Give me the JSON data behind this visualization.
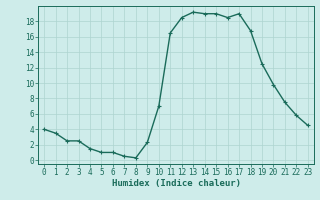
{
  "x": [
    0,
    1,
    2,
    3,
    4,
    5,
    6,
    7,
    8,
    9,
    10,
    11,
    12,
    13,
    14,
    15,
    16,
    17,
    18,
    19,
    20,
    21,
    22,
    23
  ],
  "y": [
    4.0,
    3.5,
    2.5,
    2.5,
    1.5,
    1.0,
    1.0,
    0.5,
    0.3,
    2.3,
    7.0,
    16.5,
    18.5,
    19.2,
    19.0,
    19.0,
    18.5,
    19.0,
    16.8,
    12.5,
    9.8,
    7.5,
    5.8,
    4.5
  ],
  "line_color": "#1a6b5a",
  "marker": "+",
  "bg_color": "#ceecea",
  "grid_color": "#aed4d0",
  "xlabel": "Humidex (Indice chaleur)",
  "xlim": [
    -0.5,
    23.5
  ],
  "ylim": [
    -0.5,
    20.0
  ],
  "yticks": [
    0,
    2,
    4,
    6,
    8,
    10,
    12,
    14,
    16,
    18
  ],
  "xticks": [
    0,
    1,
    2,
    3,
    4,
    5,
    6,
    7,
    8,
    9,
    10,
    11,
    12,
    13,
    14,
    15,
    16,
    17,
    18,
    19,
    20,
    21,
    22,
    23
  ],
  "tick_label_fontsize": 5.5,
  "xlabel_fontsize": 6.5,
  "linewidth": 1.0,
  "markersize": 3.5,
  "markeredgewidth": 0.8
}
